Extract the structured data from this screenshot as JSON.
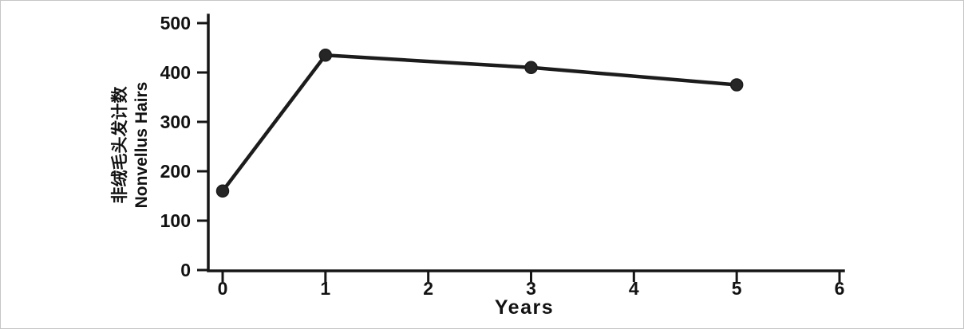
{
  "figure": {
    "x_axis_label": "Years",
    "y_axis_label_lines": [
      "非绒毛头发计数",
      "Nonvellus Hairs"
    ]
  },
  "chart_data": {
    "type": "line",
    "x": [
      0,
      1,
      3,
      5
    ],
    "values": [
      160,
      435,
      410,
      375
    ],
    "title": "",
    "xlabel": "Years",
    "ylabel_lines": [
      "非绒毛头发计数",
      "Nonvellus Hairs"
    ],
    "xlim": [
      0,
      6
    ],
    "ylim": [
      0,
      500
    ],
    "x_ticks": [
      0,
      1,
      2,
      3,
      4,
      5,
      6
    ],
    "y_ticks": [
      0,
      100,
      200,
      300,
      400,
      500
    ],
    "grid": false,
    "legend": "none",
    "colors": {
      "axis": "#161616",
      "line": "#1c1c1c",
      "marker": "#262626",
      "text": "#121212"
    }
  }
}
